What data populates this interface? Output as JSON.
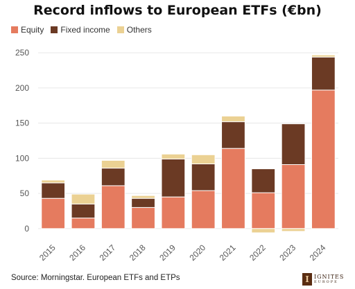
{
  "chart_data": {
    "type": "bar",
    "stacked": true,
    "title": "Record inflows to European ETFs (€bn)",
    "categories": [
      "2015",
      "2016",
      "2017",
      "2018",
      "2019",
      "2020",
      "2021",
      "2022",
      "2023",
      "2024"
    ],
    "series": [
      {
        "name": "Equity",
        "color": "#e57b5f",
        "values": [
          43,
          15,
          61,
          30,
          45,
          54,
          114,
          51,
          91,
          197
        ]
      },
      {
        "name": "Fixed income",
        "color": "#6b3a24",
        "values": [
          22,
          20,
          25,
          13,
          54,
          38,
          38,
          34,
          58,
          47
        ]
      },
      {
        "name": "Others",
        "color": "#ebd193",
        "values": [
          4,
          14,
          11,
          4,
          7,
          13,
          8,
          -6,
          -4,
          3
        ]
      }
    ],
    "ylim": [
      -12,
      262
    ],
    "yticks": [
      0,
      50,
      100,
      150,
      200,
      250
    ],
    "grid": true,
    "legend_position": "top-left",
    "source": "Source: Morningstar. European ETFs and ETPs"
  },
  "branding": {
    "logo_text": "IGNITES",
    "logo_subtext": "EUROPE",
    "logo_mark": "I"
  },
  "colors": {
    "grid": "#e6e6e6",
    "axis_text": "#555555"
  }
}
